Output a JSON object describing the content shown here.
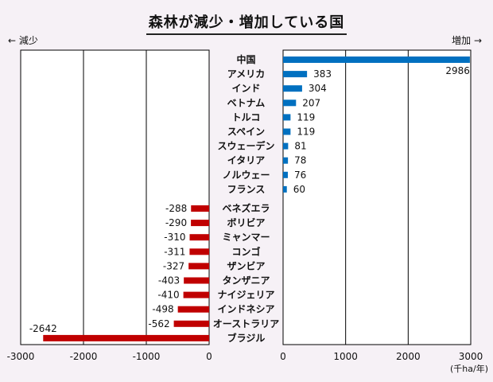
{
  "title": "森林が減少・増加している国",
  "left_direction_label": "← 減少",
  "right_direction_label": "増加 →",
  "unit_label": "(千ha/年)",
  "colors": {
    "increase": "#0070c0",
    "decrease": "#c00000",
    "background": "#f6f1f6"
  },
  "chart_data": {
    "type": "bar",
    "orientation": "horizontal",
    "title": "森林が減少・増加している国",
    "xlabel": "(千ha/年)",
    "ylabel": "",
    "grid": true,
    "increase": {
      "xlim": [
        0,
        3000
      ],
      "ticks": [
        "0",
        "1000",
        "2000",
        "3000"
      ],
      "categories": [
        "中国",
        "アメリカ",
        "インド",
        "ベトナム",
        "トルコ",
        "スペイン",
        "スウェーデン",
        "イタリア",
        "ノルウェー",
        "フランス"
      ],
      "values": [
        2986,
        383,
        304,
        207,
        119,
        119,
        81,
        78,
        76,
        60
      ]
    },
    "decrease": {
      "xlim": [
        -3000,
        0
      ],
      "ticks": [
        "-3000",
        "-2000",
        "-1000",
        "0"
      ],
      "categories": [
        "ベネズエラ",
        "ボリビア",
        "ミャンマー",
        "コンゴ",
        "ザンビア",
        "タンザニア",
        "ナイジェリア",
        "インドネシア",
        "オーストラリア",
        "ブラジル"
      ],
      "values": [
        -288,
        -290,
        -310,
        -311,
        -327,
        -403,
        -410,
        -498,
        -562,
        -2642
      ]
    }
  }
}
